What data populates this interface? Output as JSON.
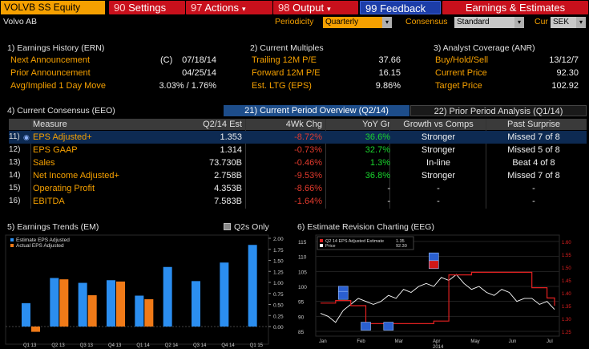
{
  "top": {
    "ticker": "VOLVB SS Equity",
    "menus": [
      {
        "num": "90",
        "label": "Settings",
        "caret": ""
      },
      {
        "num": "97",
        "label": "Actions",
        "caret": "▾"
      },
      {
        "num": "98",
        "label": "Output",
        "caret": "▾"
      },
      {
        "num": "99",
        "label": "Feedback",
        "caret": ""
      }
    ],
    "title": "Earnings & Estimates"
  },
  "header": {
    "company": "Volvo AB",
    "periodicity_label": "Periodicity",
    "periodicity_value": "Quarterly",
    "consensus_label": "Consensus",
    "consensus_value": "Standard",
    "cur_label": "Cur",
    "cur_value": "SEK"
  },
  "earnings_history": {
    "title": "1) Earnings History (ERN)",
    "rows": [
      {
        "label": "Next Announcement",
        "flag": "(C)",
        "value": "07/18/14"
      },
      {
        "label": "Prior Announcement",
        "flag": "",
        "value": "04/25/14"
      },
      {
        "label": "Avg/Implied 1 Day Move",
        "flag": "",
        "value": "3.03% / 1.76%"
      }
    ]
  },
  "current_multiples": {
    "title": "2) Current Multiples",
    "rows": [
      {
        "label": "Trailing 12M P/E",
        "value": "37.66"
      },
      {
        "label": "Forward 12M P/E",
        "value": "16.15"
      },
      {
        "label": "Est. LTG (EPS)",
        "value": "9.86%"
      }
    ]
  },
  "analyst_coverage": {
    "title": "3) Analyst Coverage (ANR)",
    "rows": [
      {
        "label": "Buy/Hold/Sell",
        "value": "13/12/7"
      },
      {
        "label": "Current Price",
        "value": "92.30"
      },
      {
        "label": "Target Price",
        "value": "102.92"
      }
    ]
  },
  "consensus": {
    "title": "4) Current Consensus (EEO)",
    "tab_current": "21) Current Period Overview (Q2/14)",
    "tab_prior": "22) Prior Period Analysis (Q1/14)",
    "headers": [
      "Measure",
      "Q2/14 Est",
      "4Wk Chg",
      "YoY Gr",
      "Growth vs Comps",
      "Past Surprise"
    ],
    "rows": [
      {
        "num": "11)",
        "measure": "EPS Adjusted+",
        "est": "1.353",
        "chg": "-8.72%",
        "yoy": "36.6%",
        "comps": "Stronger",
        "surprise": "Missed 7 of 8"
      },
      {
        "num": "12)",
        "measure": "EPS GAAP",
        "est": "1.314",
        "chg": "-0.73%",
        "yoy": "32.7%",
        "comps": "Stronger",
        "surprise": "Missed 5 of 8"
      },
      {
        "num": "13)",
        "measure": "Sales",
        "est": "73.730B",
        "chg": "-0.46%",
        "yoy": "1.3%",
        "comps": "In-line",
        "surprise": "Beat 4 of 8"
      },
      {
        "num": "14)",
        "measure": "Net Income Adjusted+",
        "est": "2.758B",
        "chg": "-9.53%",
        "yoy": "36.8%",
        "comps": "Stronger",
        "surprise": "Missed 7 of 8"
      },
      {
        "num": "15)",
        "measure": "Operating Profit",
        "est": "4.353B",
        "chg": "-8.66%",
        "yoy": "-",
        "comps": "-",
        "surprise": "-"
      },
      {
        "num": "16)",
        "measure": "EBITDA",
        "est": "7.583B",
        "chg": "-1.64%",
        "yoy": "-",
        "comps": "-",
        "surprise": "-"
      }
    ]
  },
  "trends": {
    "title": "5) Earnings Trends (EM)",
    "toggle_label": "Q2s Only",
    "legend": [
      "Estimate EPS Adjusted",
      "Actual EPS Adjusted"
    ]
  },
  "revision": {
    "title": "6) Estimate Revision Charting (EEG)",
    "legend": [
      {
        "label": "Q2 14 EPS Adjusted Estimate",
        "value": "1.35"
      },
      {
        "label": "Price",
        "value": "92.30"
      }
    ]
  },
  "chart_data": [
    {
      "type": "bar",
      "categories": [
        "Q1 13",
        "Q2 13",
        "Q3 13",
        "Q4 13",
        "Q1 14",
        "Q2 14",
        "Q3 14",
        "Q4 14",
        "Q1 15"
      ],
      "series": [
        {
          "name": "Estimate EPS Adjusted",
          "color": "#2b8ef0",
          "values": [
            0.53,
            1.1,
            0.99,
            1.05,
            0.7,
            1.35,
            1.03,
            1.45,
            1.85
          ]
        },
        {
          "name": "Actual EPS Adjusted",
          "color": "#f07a18",
          "values": [
            -0.12,
            1.07,
            0.71,
            1.02,
            0.62,
            null,
            null,
            null,
            null
          ]
        }
      ],
      "ylim": [
        0,
        2.0
      ],
      "yticks": [
        "2.00",
        "1.75",
        "1.50",
        "1.25",
        "1.00",
        "0.75",
        "0.50",
        "0.25",
        "0.00"
      ]
    },
    {
      "type": "line",
      "x_labels": [
        "Jan",
        "Feb",
        "Mar",
        "Apr",
        "May",
        "Jun",
        "Jul"
      ],
      "x_sublabel": "2014",
      "price_axis": [
        "115",
        "110",
        "105",
        "100",
        "95",
        "90",
        "85"
      ],
      "eps_axis": [
        "1.60",
        "1.55",
        "1.50",
        "1.45",
        "1.40",
        "1.35",
        "1.30",
        "1.25"
      ],
      "series": [
        {
          "name": "Q2 14 EPS Adjusted Estimate",
          "color": "#e22020",
          "points": [
            1.36,
            1.36,
            1.37,
            1.37,
            1.35,
            1.35,
            1.28,
            1.28,
            1.28,
            1.28,
            1.28,
            1.28,
            1.28,
            1.28,
            1.28,
            1.29,
            1.29,
            1.47,
            1.47,
            1.47,
            1.48,
            1.48,
            1.48,
            1.48,
            1.48,
            1.48,
            1.48,
            1.48,
            1.42,
            1.42,
            1.38,
            1.35
          ]
        },
        {
          "name": "Price",
          "color": "#ffffff",
          "points": [
            91,
            90,
            88,
            92,
            94,
            96,
            95,
            94,
            95,
            97,
            96,
            99,
            98,
            100,
            101,
            100,
            103,
            102,
            104,
            101,
            99,
            100,
            98,
            97,
            99,
            98,
            95,
            96,
            96,
            94,
            95,
            92.3
          ]
        }
      ]
    }
  ]
}
